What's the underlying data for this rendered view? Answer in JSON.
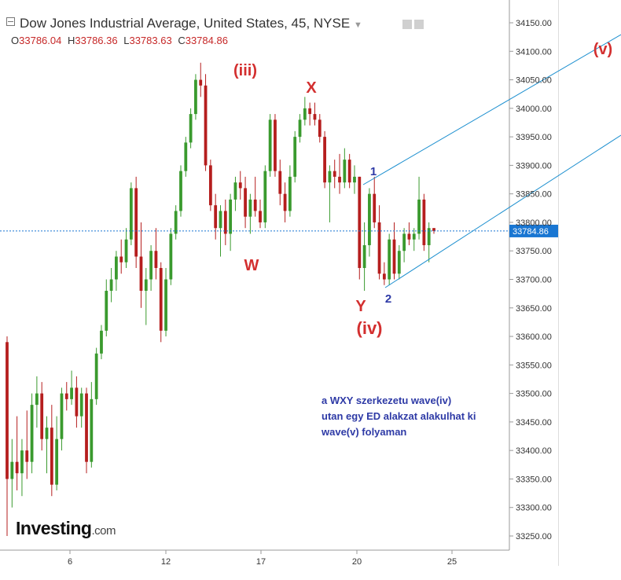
{
  "header": {
    "title": "Dow Jones Industrial Average, United States, 45, NYSE",
    "open_label": "O",
    "open": "33786.04",
    "high_label": "H",
    "high": "33786.36",
    "low_label": "L",
    "low": "33783.63",
    "close_label": "C",
    "close": "33784.86"
  },
  "colors": {
    "up": "#3a9a2e",
    "down": "#b51e1e",
    "trend": "#1a8ecf",
    "wave_red": "#d32f2f",
    "wave_blue": "#2e3aa6",
    "price_tag": "#1976d2"
  },
  "logo": {
    "brand": "Investing",
    "suffix": ".com"
  },
  "note": {
    "lines": [
      "a WXY szerkezetu wave(iv)",
      "utan  egy ED alakzat alakulhat ki",
      "wave(v) folyaman"
    ]
  },
  "chart_data": {
    "type": "candlestick",
    "y_axis": {
      "ticks": [
        "34150.00",
        "34100.00",
        "34050.00",
        "34000.00",
        "33950.00",
        "33900.00",
        "33850.00",
        "33800.00",
        "33750.00",
        "33700.00",
        "33650.00",
        "33600.00",
        "33550.00",
        "33500.00",
        "33450.00",
        "33400.00",
        "33350.00",
        "33300.00",
        "33250.00"
      ]
    },
    "x_axis": {
      "ticks": [
        "6",
        "12",
        "17",
        "20",
        "25"
      ]
    },
    "current_price": "33784.86",
    "wave_labels": [
      {
        "text": "(iii)",
        "color": "red",
        "at_price": 34095
      },
      {
        "text": "X",
        "color": "red",
        "at_price": 34025
      },
      {
        "text": "W",
        "color": "red",
        "at_price": 33735
      },
      {
        "text": "Y",
        "color": "red",
        "at_price": 33665
      },
      {
        "text": "(iv)",
        "color": "red",
        "at_price": 33617
      },
      {
        "text": "(v)",
        "color": "red",
        "at_price": 34100
      },
      {
        "text": "1",
        "color": "blue",
        "at_price": 33890
      },
      {
        "text": "2",
        "color": "blue",
        "at_price": 33665
      }
    ],
    "ohlc": [
      {
        "o": 33590,
        "h": 33600,
        "l": 33250,
        "c": 33350
      },
      {
        "o": 33350,
        "h": 33420,
        "l": 33300,
        "c": 33380
      },
      {
        "o": 33380,
        "h": 33460,
        "l": 33330,
        "c": 33360
      },
      {
        "o": 33360,
        "h": 33420,
        "l": 33320,
        "c": 33400
      },
      {
        "o": 33400,
        "h": 33470,
        "l": 33350,
        "c": 33380
      },
      {
        "o": 33380,
        "h": 33500,
        "l": 33360,
        "c": 33480
      },
      {
        "o": 33480,
        "h": 33530,
        "l": 33440,
        "c": 33500
      },
      {
        "o": 33500,
        "h": 33520,
        "l": 33400,
        "c": 33420
      },
      {
        "o": 33420,
        "h": 33460,
        "l": 33360,
        "c": 33440
      },
      {
        "o": 33440,
        "h": 33480,
        "l": 33320,
        "c": 33340
      },
      {
        "o": 33340,
        "h": 33460,
        "l": 33330,
        "c": 33420
      },
      {
        "o": 33420,
        "h": 33510,
        "l": 33400,
        "c": 33500
      },
      {
        "o": 33500,
        "h": 33520,
        "l": 33470,
        "c": 33490
      },
      {
        "o": 33490,
        "h": 33540,
        "l": 33480,
        "c": 33510
      },
      {
        "o": 33510,
        "h": 33530,
        "l": 33440,
        "c": 33460
      },
      {
        "o": 33460,
        "h": 33510,
        "l": 33440,
        "c": 33500
      },
      {
        "o": 33500,
        "h": 33510,
        "l": 33360,
        "c": 33380
      },
      {
        "o": 33380,
        "h": 33520,
        "l": 33370,
        "c": 33490
      },
      {
        "o": 33490,
        "h": 33580,
        "l": 33480,
        "c": 33570
      },
      {
        "o": 33570,
        "h": 33620,
        "l": 33560,
        "c": 33610
      },
      {
        "o": 33610,
        "h": 33700,
        "l": 33600,
        "c": 33680
      },
      {
        "o": 33680,
        "h": 33720,
        "l": 33660,
        "c": 33700
      },
      {
        "o": 33700,
        "h": 33750,
        "l": 33680,
        "c": 33740
      },
      {
        "o": 33740,
        "h": 33770,
        "l": 33710,
        "c": 33730
      },
      {
        "o": 33730,
        "h": 33790,
        "l": 33720,
        "c": 33770
      },
      {
        "o": 33770,
        "h": 33870,
        "l": 33760,
        "c": 33860
      },
      {
        "o": 33860,
        "h": 33880,
        "l": 33720,
        "c": 33740
      },
      {
        "o": 33740,
        "h": 33800,
        "l": 33650,
        "c": 33680
      },
      {
        "o": 33680,
        "h": 33720,
        "l": 33620,
        "c": 33700
      },
      {
        "o": 33700,
        "h": 33760,
        "l": 33680,
        "c": 33750
      },
      {
        "o": 33750,
        "h": 33790,
        "l": 33700,
        "c": 33720
      },
      {
        "o": 33720,
        "h": 33730,
        "l": 33590,
        "c": 33610
      },
      {
        "o": 33610,
        "h": 33720,
        "l": 33600,
        "c": 33700
      },
      {
        "o": 33700,
        "h": 33790,
        "l": 33690,
        "c": 33780
      },
      {
        "o": 33780,
        "h": 33830,
        "l": 33770,
        "c": 33820
      },
      {
        "o": 33820,
        "h": 33900,
        "l": 33810,
        "c": 33890
      },
      {
        "o": 33890,
        "h": 33950,
        "l": 33880,
        "c": 33940
      },
      {
        "o": 33940,
        "h": 34000,
        "l": 33930,
        "c": 33990
      },
      {
        "o": 33990,
        "h": 34060,
        "l": 33980,
        "c": 34050
      },
      {
        "o": 34050,
        "h": 34080,
        "l": 34020,
        "c": 34040
      },
      {
        "o": 34040,
        "h": 34060,
        "l": 33890,
        "c": 33900
      },
      {
        "o": 33900,
        "h": 33910,
        "l": 33820,
        "c": 33830
      },
      {
        "o": 33830,
        "h": 33850,
        "l": 33770,
        "c": 33790
      },
      {
        "o": 33790,
        "h": 33830,
        "l": 33740,
        "c": 33820
      },
      {
        "o": 33820,
        "h": 33840,
        "l": 33760,
        "c": 33780
      },
      {
        "o": 33780,
        "h": 33850,
        "l": 33750,
        "c": 33840
      },
      {
        "o": 33840,
        "h": 33880,
        "l": 33820,
        "c": 33870
      },
      {
        "o": 33870,
        "h": 33890,
        "l": 33840,
        "c": 33860
      },
      {
        "o": 33860,
        "h": 33880,
        "l": 33790,
        "c": 33810
      },
      {
        "o": 33810,
        "h": 33850,
        "l": 33780,
        "c": 33840
      },
      {
        "o": 33840,
        "h": 33880,
        "l": 33810,
        "c": 33820
      },
      {
        "o": 33820,
        "h": 33840,
        "l": 33790,
        "c": 33800
      },
      {
        "o": 33800,
        "h": 33900,
        "l": 33790,
        "c": 33890
      },
      {
        "o": 33890,
        "h": 33990,
        "l": 33880,
        "c": 33980
      },
      {
        "o": 33980,
        "h": 33990,
        "l": 33880,
        "c": 33890
      },
      {
        "o": 33890,
        "h": 33910,
        "l": 33830,
        "c": 33850
      },
      {
        "o": 33850,
        "h": 33870,
        "l": 33800,
        "c": 33820
      },
      {
        "o": 33820,
        "h": 33900,
        "l": 33810,
        "c": 33880
      },
      {
        "o": 33880,
        "h": 33960,
        "l": 33870,
        "c": 33950
      },
      {
        "o": 33950,
        "h": 33990,
        "l": 33940,
        "c": 33980
      },
      {
        "o": 33980,
        "h": 34020,
        "l": 33970,
        "c": 34000
      },
      {
        "o": 34000,
        "h": 34010,
        "l": 33970,
        "c": 33990
      },
      {
        "o": 33990,
        "h": 34010,
        "l": 33970,
        "c": 33980
      },
      {
        "o": 33980,
        "h": 33990,
        "l": 33940,
        "c": 33950
      },
      {
        "o": 33950,
        "h": 33960,
        "l": 33860,
        "c": 33870
      },
      {
        "o": 33870,
        "h": 33900,
        "l": 33800,
        "c": 33890
      },
      {
        "o": 33890,
        "h": 33910,
        "l": 33860,
        "c": 33880
      },
      {
        "o": 33880,
        "h": 33920,
        "l": 33850,
        "c": 33870
      },
      {
        "o": 33870,
        "h": 33930,
        "l": 33860,
        "c": 33910
      },
      {
        "o": 33910,
        "h": 33920,
        "l": 33860,
        "c": 33870
      },
      {
        "o": 33870,
        "h": 33900,
        "l": 33850,
        "c": 33880
      },
      {
        "o": 33880,
        "h": 33880,
        "l": 33700,
        "c": 33720
      },
      {
        "o": 33720,
        "h": 33800,
        "l": 33680,
        "c": 33760
      },
      {
        "o": 33760,
        "h": 33860,
        "l": 33740,
        "c": 33850
      },
      {
        "o": 33850,
        "h": 33880,
        "l": 33790,
        "c": 33800
      },
      {
        "o": 33800,
        "h": 33830,
        "l": 33700,
        "c": 33710
      },
      {
        "o": 33710,
        "h": 33730,
        "l": 33690,
        "c": 33700
      },
      {
        "o": 33700,
        "h": 33780,
        "l": 33690,
        "c": 33770
      },
      {
        "o": 33770,
        "h": 33800,
        "l": 33700,
        "c": 33710
      },
      {
        "o": 33710,
        "h": 33760,
        "l": 33700,
        "c": 33750
      },
      {
        "o": 33750,
        "h": 33790,
        "l": 33730,
        "c": 33780
      },
      {
        "o": 33780,
        "h": 33800,
        "l": 33760,
        "c": 33770
      },
      {
        "o": 33770,
        "h": 33790,
        "l": 33750,
        "c": 33780
      },
      {
        "o": 33780,
        "h": 33880,
        "l": 33770,
        "c": 33840
      },
      {
        "o": 33840,
        "h": 33850,
        "l": 33750,
        "c": 33760
      },
      {
        "o": 33760,
        "h": 33800,
        "l": 33730,
        "c": 33790
      },
      {
        "o": 33790,
        "h": 33790,
        "l": 33780,
        "c": 33785
      }
    ]
  }
}
